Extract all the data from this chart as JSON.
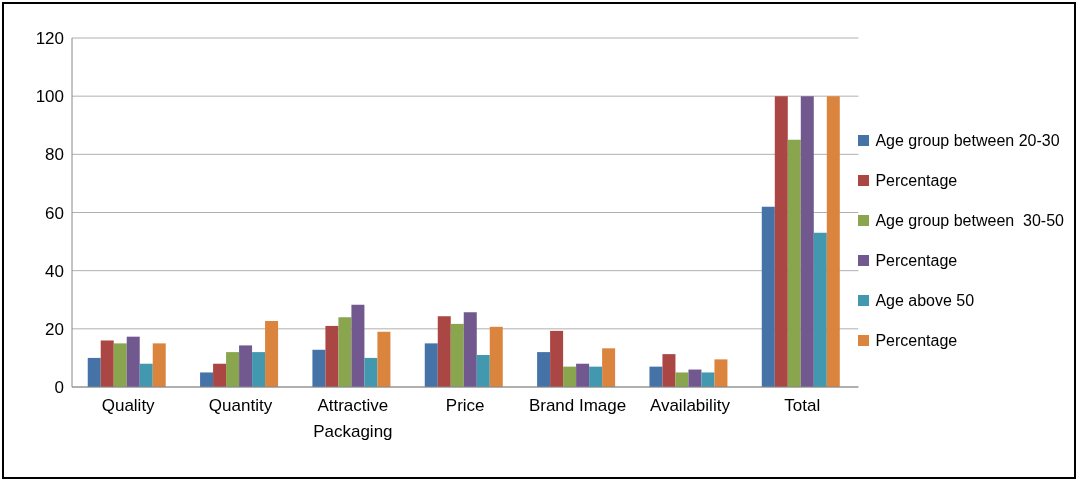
{
  "chart_data": {
    "type": "bar",
    "categories": [
      "Quality",
      "Quantity",
      "Attractive Packaging",
      "Price",
      "Brand Image",
      "Availability",
      "Total"
    ],
    "series": [
      {
        "name": "Age group between 20-30",
        "color": "#4572a7",
        "values": [
          10,
          5,
          12.8,
          15,
          12,
          7,
          62
        ]
      },
      {
        "name": "Percentage",
        "color": "#aa4643",
        "values": [
          16,
          8,
          21,
          24.3,
          19.3,
          11.3,
          100
        ]
      },
      {
        "name": "Age group between  30-50",
        "color": "#89a54e",
        "values": [
          15,
          12,
          24,
          21.7,
          7,
          5,
          85
        ]
      },
      {
        "name": "Percentage",
        "color": "#71588f",
        "values": [
          17.3,
          14.3,
          28.3,
          25.7,
          8,
          6,
          100
        ]
      },
      {
        "name": "Age above 50",
        "color": "#4198af",
        "values": [
          8,
          12,
          10,
          11,
          7,
          5,
          53
        ]
      },
      {
        "name": "Percentage",
        "color": "#db843d",
        "values": [
          15,
          22.7,
          19,
          20.7,
          13.3,
          9.5,
          100
        ]
      }
    ],
    "ylim": [
      0,
      120
    ],
    "yticks": [
      0,
      20,
      40,
      60,
      80,
      100,
      120
    ],
    "grid": "y",
    "legend": "right"
  }
}
